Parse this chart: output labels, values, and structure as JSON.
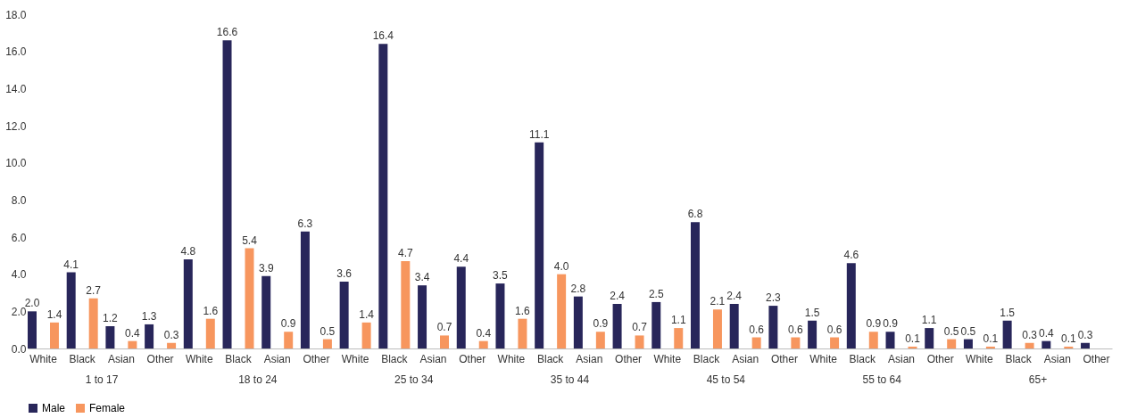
{
  "chart_data": {
    "type": "bar",
    "categories": [
      "White",
      "Black",
      "Asian",
      "Other",
      "White",
      "Black",
      "Asian",
      "Other",
      "White",
      "Black",
      "Asian",
      "Other",
      "White",
      "Black",
      "Asian",
      "Other",
      "White",
      "Black",
      "Asian",
      "Other",
      "White",
      "Black",
      "Asian",
      "Other",
      "White",
      "Black",
      "Asian",
      "Other"
    ],
    "series": [
      {
        "name": "Male",
        "color": "#28265a",
        "values": [
          2.0,
          4.1,
          1.2,
          1.3,
          4.8,
          16.6,
          3.9,
          6.3,
          3.6,
          16.4,
          3.4,
          4.4,
          3.5,
          11.1,
          2.8,
          2.4,
          2.5,
          6.8,
          2.4,
          2.3,
          1.5,
          4.6,
          0.9,
          1.1,
          0.5,
          1.5,
          0.4,
          0.3
        ],
        "value_labels": [
          "2.0",
          "4.1",
          "1.2",
          "1.3",
          "4.8",
          "16.6",
          "3.9",
          "6.3",
          "3.6",
          "16.4",
          "3.4",
          "4.4",
          "3.5",
          "11.1",
          "2.8",
          "2.4",
          "2.5",
          "6.8",
          "2.4",
          "2.3",
          "1.5",
          "4.6",
          "0.9",
          "1.1",
          "0.5",
          "1.5",
          "0.4",
          "0.3"
        ]
      },
      {
        "name": "Female",
        "color": "#f7965e",
        "values": [
          1.4,
          2.7,
          0.4,
          0.3,
          1.6,
          5.4,
          0.9,
          0.5,
          1.4,
          4.7,
          0.7,
          0.4,
          1.6,
          4.0,
          0.9,
          0.7,
          1.1,
          2.1,
          0.6,
          0.6,
          0.6,
          0.9,
          0.1,
          0.5,
          0.1,
          0.3,
          0.1,
          null
        ],
        "value_labels": [
          "1.4",
          "2.7",
          "0.4",
          "0.3",
          "1.6",
          "5.4",
          "0.9",
          "0.5",
          "1.4",
          "4.7",
          "0.7",
          "0.4",
          "1.6",
          "4.0",
          "0.9",
          "0.7",
          "1.1",
          "2.1",
          "0.6",
          "0.6",
          "0.6",
          "0.9",
          "0.1",
          "0.5",
          "0.1",
          "0.3",
          "0.1",
          null
        ]
      }
    ],
    "annotations": [
      "1 to 17",
      "18 to 24",
      "25 to 34",
      "35 to 44",
      "45 to 54",
      "55 to 64",
      "65+"
    ],
    "ylim": [
      0,
      18
    ],
    "yticks": [
      {
        "value": 0,
        "label": "0.0"
      },
      {
        "value": 2,
        "label": "2.0"
      },
      {
        "value": 4,
        "label": "4.0"
      },
      {
        "value": 6,
        "label": "6.0"
      },
      {
        "value": 8,
        "label": "8.0"
      },
      {
        "value": 10,
        "label": "10.0"
      },
      {
        "value": 12,
        "label": "12.0"
      },
      {
        "value": 14,
        "label": "14.0"
      },
      {
        "value": 16,
        "label": "16.0"
      },
      {
        "value": 18,
        "label": "18.0"
      }
    ],
    "grid": false,
    "legend": "bottom"
  }
}
